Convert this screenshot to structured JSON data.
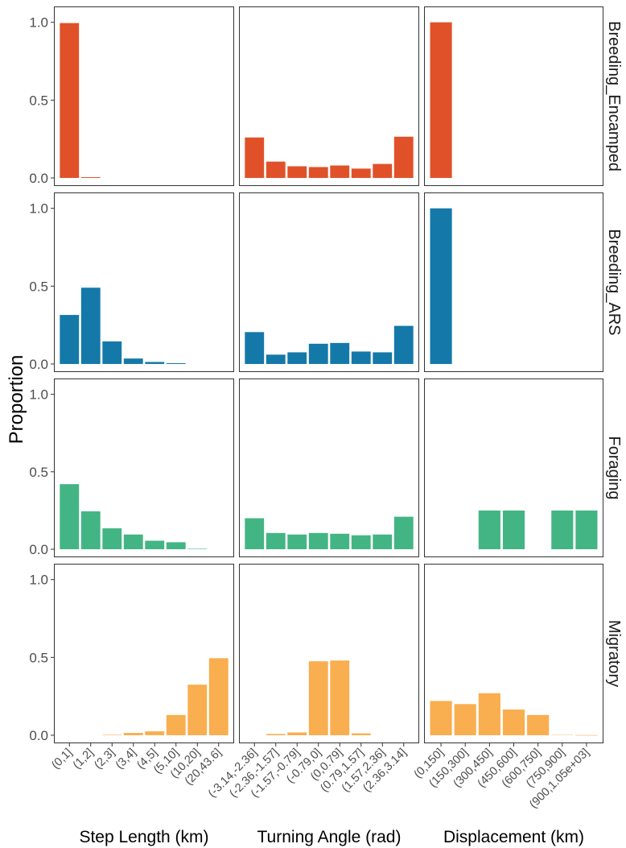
{
  "chart_data": {
    "type": "bar",
    "facet_rows": [
      "Breeding_Encamped",
      "Breeding_ARS",
      "Foraging",
      "Migratory"
    ],
    "facet_cols": [
      "Step Length (km)",
      "Turning Angle (rad)",
      "Displacement (km)"
    ],
    "ylabel": "Proportion",
    "ylim": [
      0,
      1.05
    ],
    "yticks": [
      "0.0",
      "0.5",
      "1.0"
    ],
    "colors": {
      "Breeding_Encamped": "#e0512a",
      "Breeding_ARS": "#1479a8",
      "Foraging": "#43b584",
      "Migratory": "#f9ae4f"
    },
    "categories": [
      [
        "(0,1]",
        "(1,2]",
        "(2,3]",
        "(3,4]",
        "(4,5]",
        "(5,10]",
        "(10,20]",
        "(20,43.6]"
      ],
      [
        "(-3.14,-2.36]",
        "(-2.36,-1.57]",
        "(-1.57,-0.79]",
        "(-0.79,0]",
        "(0,0.79]",
        "(0.79,1.57]",
        "(1.57,2.36]",
        "(2.36,3.14]"
      ],
      [
        "(0,150]",
        "(150,300]",
        "(300,450]",
        "(450,600]",
        "(600,750]",
        "(750,900]",
        "(900,1.05e+03]"
      ]
    ],
    "values": {
      "Breeding_Encamped": [
        [
          0.995,
          0.005,
          0,
          0,
          0,
          0,
          0,
          0
        ],
        [
          0.26,
          0.105,
          0.075,
          0.07,
          0.08,
          0.06,
          0.09,
          0.265
        ],
        [
          1.0,
          0,
          0,
          0,
          0,
          0,
          0
        ]
      ],
      "Breeding_ARS": [
        [
          0.315,
          0.49,
          0.145,
          0.035,
          0.013,
          0.005,
          0,
          0
        ],
        [
          0.205,
          0.06,
          0.075,
          0.13,
          0.135,
          0.08,
          0.075,
          0.245
        ],
        [
          1.0,
          0,
          0,
          0,
          0,
          0,
          0
        ]
      ],
      "Foraging": [
        [
          0.42,
          0.245,
          0.135,
          0.095,
          0.055,
          0.045,
          0.003,
          0
        ],
        [
          0.2,
          0.105,
          0.095,
          0.105,
          0.1,
          0.09,
          0.095,
          0.21
        ],
        [
          0,
          0,
          0.25,
          0.25,
          0,
          0.25,
          0.25
        ]
      ],
      "Migratory": [
        [
          0,
          0,
          0.003,
          0.015,
          0.025,
          0.13,
          0.325,
          0.495
        ],
        [
          0,
          0.008,
          0.018,
          0.475,
          0.48,
          0.012,
          0,
          0
        ],
        [
          0.22,
          0.2,
          0.27,
          0.165,
          0.13,
          0.002,
          0.001
        ]
      ]
    }
  }
}
